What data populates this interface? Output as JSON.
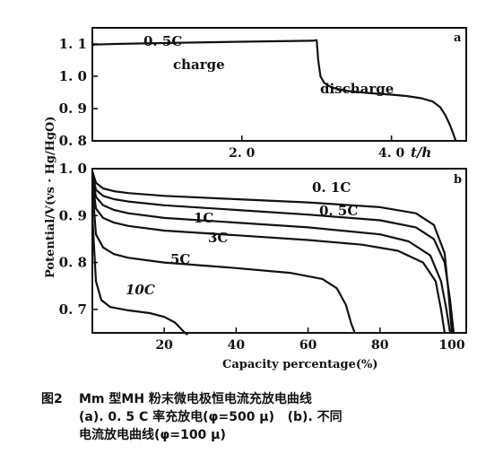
{
  "chart_data": [
    {
      "panel": "a",
      "type": "line",
      "xlabel": "t/h",
      "x_ticks": [
        2.0,
        4.0
      ],
      "x_tick_labels": [
        "2. 0",
        "4. 0"
      ],
      "xlim": [
        0,
        5.0
      ],
      "ylim": [
        0.8,
        1.15
      ],
      "y_ticks": [
        0.8,
        0.9,
        1.0,
        1.1
      ],
      "y_tick_labels": [
        "0. 8",
        "0. 9",
        "1. 0",
        "1. 1"
      ],
      "annotations": [
        "0. 5C",
        "charge",
        "discharge"
      ],
      "series": [
        {
          "label": "0. 5C",
          "x": [
            0,
            0.02,
            0.3,
            1.0,
            2.0,
            2.95,
            3.0,
            3.02,
            3.05,
            3.1,
            3.2,
            3.4,
            3.6,
            3.8,
            4.0,
            4.2,
            4.4,
            4.55,
            4.65,
            4.72,
            4.78,
            4.83,
            4.86
          ],
          "y": [
            1.095,
            1.098,
            1.1,
            1.103,
            1.107,
            1.11,
            1.112,
            1.05,
            1.0,
            0.98,
            0.965,
            0.955,
            0.95,
            0.946,
            0.943,
            0.939,
            0.932,
            0.922,
            0.905,
            0.88,
            0.85,
            0.82,
            0.8
          ]
        }
      ]
    },
    {
      "panel": "b",
      "type": "line",
      "xlabel": "Capacity percentage(%)",
      "ylabel": "Potential/V(vs · Hg/HgO)",
      "x_ticks": [
        20,
        40,
        60,
        80,
        100
      ],
      "xlim": [
        0,
        104
      ],
      "ylim": [
        0.65,
        1.0
      ],
      "y_ticks": [
        0.7,
        0.8,
        0.9,
        1.0
      ],
      "y_tick_labels": [
        "0. 7",
        "0. 8",
        "0. 9",
        "1. 0"
      ],
      "series": [
        {
          "label": "0. 1C",
          "x": [
            0,
            1,
            3,
            6,
            10,
            20,
            40,
            60,
            80,
            90,
            95,
            98,
            99,
            100
          ],
          "y": [
            0.995,
            0.97,
            0.958,
            0.952,
            0.948,
            0.942,
            0.935,
            0.928,
            0.918,
            0.905,
            0.88,
            0.82,
            0.74,
            0.65
          ]
        },
        {
          "label": "0. 5C",
          "x": [
            0,
            1,
            3,
            6,
            10,
            20,
            40,
            60,
            80,
            90,
            95,
            98,
            99.5,
            100.5
          ],
          "y": [
            0.99,
            0.955,
            0.942,
            0.935,
            0.93,
            0.922,
            0.912,
            0.902,
            0.89,
            0.875,
            0.85,
            0.8,
            0.72,
            0.65
          ]
        },
        {
          "label": "1C",
          "x": [
            0,
            1,
            3,
            6,
            10,
            20,
            40,
            60,
            80,
            88,
            94,
            97,
            98.5,
            99.5
          ],
          "y": [
            0.985,
            0.94,
            0.922,
            0.912,
            0.905,
            0.895,
            0.885,
            0.875,
            0.86,
            0.845,
            0.815,
            0.76,
            0.7,
            0.65
          ]
        },
        {
          "label": "3C",
          "x": [
            0,
            1,
            3,
            6,
            10,
            20,
            40,
            60,
            75,
            85,
            92,
            95.5,
            97,
            98
          ],
          "y": [
            0.975,
            0.915,
            0.895,
            0.885,
            0.878,
            0.868,
            0.858,
            0.848,
            0.838,
            0.825,
            0.8,
            0.76,
            0.7,
            0.65
          ]
        },
        {
          "label": "5C",
          "x": [
            0,
            1,
            3,
            6,
            10,
            20,
            40,
            55,
            64,
            68,
            70.5,
            72,
            73
          ],
          "y": [
            0.96,
            0.86,
            0.832,
            0.818,
            0.81,
            0.8,
            0.788,
            0.778,
            0.765,
            0.745,
            0.71,
            0.67,
            0.65
          ]
        },
        {
          "label": "10C",
          "x": [
            0,
            1,
            2.5,
            5,
            10,
            16,
            20,
            23,
            24.5,
            25.5,
            26.5
          ],
          "y": [
            0.9,
            0.76,
            0.72,
            0.705,
            0.698,
            0.692,
            0.684,
            0.672,
            0.66,
            0.652,
            0.646
          ]
        }
      ]
    }
  ],
  "caption": {
    "fig_no": "图2",
    "lines": [
      "Mm 型MH 粉末微电极恒电流充放电曲线",
      "(a). 0. 5 C 率充放电(φ=500 μ)   (b). 不同",
      "电流放电曲线(φ=100 μ)"
    ]
  }
}
